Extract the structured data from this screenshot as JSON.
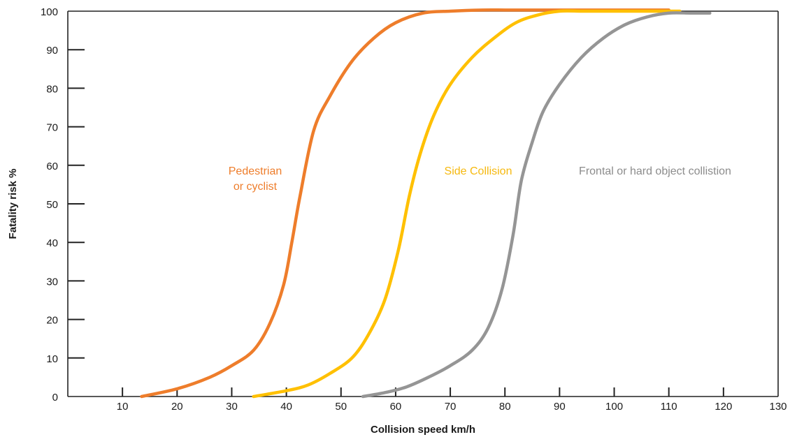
{
  "chart_data": {
    "type": "line",
    "title": "",
    "xlabel": "Collision speed km/h",
    "ylabel": "Fatality risk %",
    "xlim": [
      0,
      130
    ],
    "ylim": [
      0,
      100
    ],
    "xticks": [
      10,
      20,
      30,
      40,
      50,
      60,
      70,
      80,
      90,
      100,
      110,
      120,
      130
    ],
    "yticks": [
      0,
      10,
      20,
      30,
      40,
      50,
      60,
      70,
      80,
      90,
      100
    ],
    "grid": false,
    "legend": "none",
    "series": [
      {
        "name": "Pedestrian or cyclist",
        "label_lines": [
          "Pedestrian",
          "or cyclist"
        ],
        "color": "#EE7D2B",
        "label_color": "#EE7D2B",
        "x": [
          13.5,
          20,
          26,
          30,
          34,
          37,
          39.5,
          41,
          42.5,
          45,
          48,
          52,
          56,
          60,
          65,
          70,
          76,
          80,
          84,
          88,
          93,
          98,
          104,
          110
        ],
        "y": [
          0,
          2,
          5,
          8,
          12,
          19,
          29,
          40,
          52,
          69,
          78,
          87,
          93,
          97,
          99.5,
          100,
          100.3,
          100.3,
          100.3,
          100.3,
          100.3,
          100.3,
          100.3,
          100.3
        ]
      },
      {
        "name": "Side Collision",
        "label_lines": [
          "Side Collision"
        ],
        "color": "#FFC000",
        "label_color": "#F6B90F",
        "x": [
          34,
          40,
          44,
          48,
          52,
          55,
          58,
          60.5,
          62.5,
          64.5,
          67,
          70,
          74,
          78,
          82,
          86,
          90,
          94,
          98,
          102,
          106,
          112
        ],
        "y": [
          0,
          1.5,
          3,
          6,
          10,
          16,
          25,
          38,
          52,
          63,
          73,
          81,
          88,
          93,
          97,
          99,
          100,
          100,
          100,
          100,
          100,
          100
        ]
      },
      {
        "name": "Frontal or hard object collistion",
        "label_lines": [
          "Frontal or hard object collistion"
        ],
        "color": "#959595",
        "label_color": "#8C8C8C",
        "x": [
          54,
          58,
          62,
          66,
          70,
          74,
          77,
          79.5,
          81.5,
          83,
          85,
          87,
          90,
          94,
          98,
          102,
          106,
          110,
          114,
          117.5
        ],
        "y": [
          0,
          1,
          2.5,
          5,
          8,
          12,
          18,
          28,
          42,
          56,
          66,
          74,
          81,
          88,
          93,
          96.5,
          98.5,
          99.5,
          99.5,
          99.5
        ]
      }
    ]
  }
}
